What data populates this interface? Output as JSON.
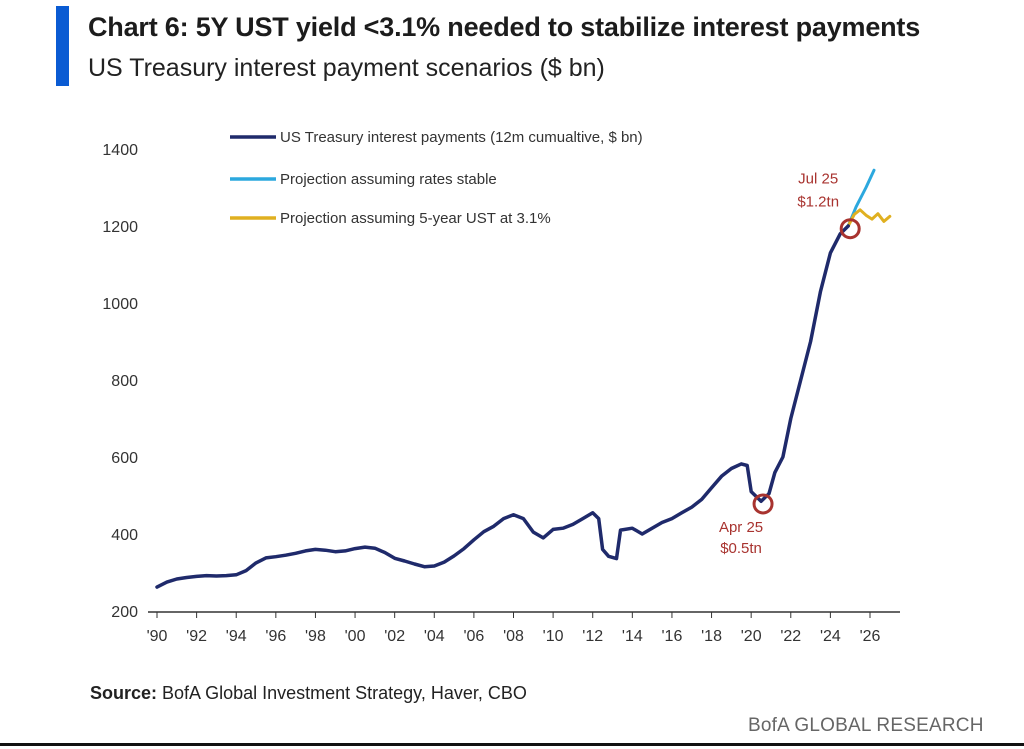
{
  "header": {
    "title": "Chart 6: 5Y UST yield <3.1% needed to stabilize interest payments",
    "subtitle": "US Treasury interest payment scenarios ($ bn)"
  },
  "footer": {
    "source_label": "Source:",
    "source_text": " BofA Global Investment Strategy, Haver, CBO",
    "brand": "BofA GLOBAL RESEARCH"
  },
  "colors": {
    "accent": "#0a5bd3",
    "actual": "#1f2a6b",
    "stable": "#2ca8de",
    "ust31": "#e0b020",
    "annotation": "#a8332f"
  },
  "chart_data": {
    "type": "line",
    "title": "",
    "xlabel": "",
    "ylabel": "",
    "xlim": [
      1990,
      2027.3
    ],
    "ylim": [
      200,
      1400
    ],
    "yticks": [
      200,
      400,
      600,
      800,
      1000,
      1200,
      1400
    ],
    "xticks": [
      {
        "value": 1990,
        "label": "'90"
      },
      {
        "value": 1992,
        "label": "'92"
      },
      {
        "value": 1994,
        "label": "'94"
      },
      {
        "value": 1996,
        "label": "'96"
      },
      {
        "value": 1998,
        "label": "'98"
      },
      {
        "value": 2000,
        "label": "'00"
      },
      {
        "value": 2002,
        "label": "'02"
      },
      {
        "value": 2004,
        "label": "'04"
      },
      {
        "value": 2006,
        "label": "'06"
      },
      {
        "value": 2008,
        "label": "'08"
      },
      {
        "value": 2010,
        "label": "'10"
      },
      {
        "value": 2012,
        "label": "'12"
      },
      {
        "value": 2014,
        "label": "'14"
      },
      {
        "value": 2016,
        "label": "'16"
      },
      {
        "value": 2018,
        "label": "'18"
      },
      {
        "value": 2020,
        "label": "'20"
      },
      {
        "value": 2022,
        "label": "'22"
      },
      {
        "value": 2024,
        "label": "'24"
      },
      {
        "value": 2026,
        "label": "'26"
      }
    ],
    "legend_position": "top-left",
    "series": [
      {
        "name": "US Treasury interest payments (12m cumualtive, $ bn)",
        "color": "#1f2a6b",
        "points": [
          [
            1990.0,
            262
          ],
          [
            1990.5,
            275
          ],
          [
            1991.0,
            283
          ],
          [
            1991.5,
            287
          ],
          [
            1992.0,
            290
          ],
          [
            1992.5,
            292
          ],
          [
            1993.0,
            291
          ],
          [
            1993.5,
            292
          ],
          [
            1994.0,
            294
          ],
          [
            1994.5,
            305
          ],
          [
            1995.0,
            325
          ],
          [
            1995.5,
            338
          ],
          [
            1996.0,
            341
          ],
          [
            1996.5,
            345
          ],
          [
            1997.0,
            350
          ],
          [
            1997.5,
            356
          ],
          [
            1998.0,
            360
          ],
          [
            1998.5,
            358
          ],
          [
            1999.0,
            354
          ],
          [
            1999.5,
            356
          ],
          [
            2000.0,
            362
          ],
          [
            2000.5,
            366
          ],
          [
            2001.0,
            363
          ],
          [
            2001.5,
            352
          ],
          [
            2002.0,
            337
          ],
          [
            2002.5,
            330
          ],
          [
            2003.0,
            322
          ],
          [
            2003.5,
            315
          ],
          [
            2004.0,
            317
          ],
          [
            2004.5,
            327
          ],
          [
            2005.0,
            343
          ],
          [
            2005.5,
            362
          ],
          [
            2006.0,
            385
          ],
          [
            2006.5,
            406
          ],
          [
            2007.0,
            420
          ],
          [
            2007.5,
            440
          ],
          [
            2008.0,
            450
          ],
          [
            2008.5,
            440
          ],
          [
            2009.0,
            405
          ],
          [
            2009.5,
            390
          ],
          [
            2010.0,
            412
          ],
          [
            2010.5,
            415
          ],
          [
            2011.0,
            425
          ],
          [
            2011.5,
            440
          ],
          [
            2012.0,
            455
          ],
          [
            2012.3,
            440
          ],
          [
            2012.5,
            360
          ],
          [
            2012.8,
            342
          ],
          [
            2013.2,
            336
          ],
          [
            2013.4,
            410
          ],
          [
            2014.0,
            415
          ],
          [
            2014.5,
            400
          ],
          [
            2015.0,
            415
          ],
          [
            2015.5,
            430
          ],
          [
            2016.0,
            440
          ],
          [
            2016.5,
            455
          ],
          [
            2017.0,
            470
          ],
          [
            2017.5,
            490
          ],
          [
            2018.0,
            520
          ],
          [
            2018.5,
            550
          ],
          [
            2019.0,
            570
          ],
          [
            2019.5,
            582
          ],
          [
            2019.8,
            578
          ],
          [
            2020.0,
            510
          ],
          [
            2020.5,
            485
          ],
          [
            2020.9,
            505
          ],
          [
            2021.2,
            560
          ],
          [
            2021.6,
            600
          ],
          [
            2022.0,
            700
          ],
          [
            2022.5,
            800
          ],
          [
            2023.0,
            900
          ],
          [
            2023.5,
            1030
          ],
          [
            2024.0,
            1130
          ],
          [
            2024.5,
            1180
          ],
          [
            2024.9,
            1200
          ]
        ]
      },
      {
        "name": "Projection assuming rates stable",
        "color": "#2ca8de",
        "points": [
          [
            2024.9,
            1200
          ],
          [
            2025.3,
            1250
          ],
          [
            2025.8,
            1300
          ],
          [
            2026.2,
            1345
          ]
        ]
      },
      {
        "name": "Projection assuming 5-year UST at 3.1%",
        "color": "#e0b020",
        "points": [
          [
            2024.9,
            1200
          ],
          [
            2025.2,
            1230
          ],
          [
            2025.5,
            1242
          ],
          [
            2025.8,
            1228
          ],
          [
            2026.1,
            1218
          ],
          [
            2026.4,
            1232
          ],
          [
            2026.7,
            1212
          ],
          [
            2027.0,
            1225
          ]
        ]
      }
    ],
    "annotations": [
      {
        "x": 2025.0,
        "y": 1193,
        "lines": [
          "Jul 25",
          "$1.2tn"
        ],
        "position": "above"
      },
      {
        "x": 2020.6,
        "y": 478,
        "lines": [
          "Apr 25",
          "$0.5tn"
        ],
        "position": "below"
      }
    ]
  }
}
